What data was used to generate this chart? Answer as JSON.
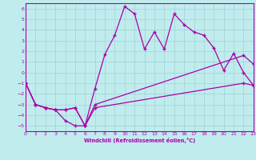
{
  "xlabel": "Windchill (Refroidissement éolien,°C)",
  "xlim": [
    0,
    23
  ],
  "ylim": [
    -5.5,
    6.5
  ],
  "yticks": [
    -5,
    -4,
    -3,
    -2,
    -1,
    0,
    1,
    2,
    3,
    4,
    5,
    6
  ],
  "xticks": [
    0,
    1,
    2,
    3,
    4,
    5,
    6,
    7,
    8,
    9,
    10,
    11,
    12,
    13,
    14,
    15,
    16,
    17,
    18,
    19,
    20,
    21,
    22,
    23
  ],
  "bg_color": "#c0ecee",
  "grid_color": "#99cccc",
  "line_color": "#aa00aa",
  "line1_x": [
    0,
    1,
    2,
    3,
    4,
    5,
    6,
    7,
    8,
    9,
    10,
    11,
    12,
    13,
    14,
    15,
    16,
    17,
    18,
    19,
    20,
    21,
    22,
    23
  ],
  "line1_y": [
    -1,
    -3,
    -3.3,
    -3.5,
    -4.5,
    -5,
    -5,
    -1.5,
    1.7,
    3.5,
    6.2,
    5.5,
    2.2,
    3.8,
    2.2,
    5.5,
    4.5,
    3.8,
    3.5,
    2.3,
    0.2,
    1.8,
    0.0,
    -1.2
  ],
  "line2_x": [
    0,
    1,
    2,
    3,
    4,
    5,
    6,
    7,
    22,
    23
  ],
  "line2_y": [
    -1,
    -3,
    -3.3,
    -3.5,
    -3.5,
    -3.3,
    -5,
    -3.0,
    1.6,
    0.8
  ],
  "line3_x": [
    0,
    1,
    2,
    3,
    4,
    5,
    6,
    7,
    22,
    23
  ],
  "line3_y": [
    -1,
    -3,
    -3.3,
    -3.5,
    -3.5,
    -3.3,
    -5,
    -3.3,
    -1.0,
    -1.2
  ]
}
